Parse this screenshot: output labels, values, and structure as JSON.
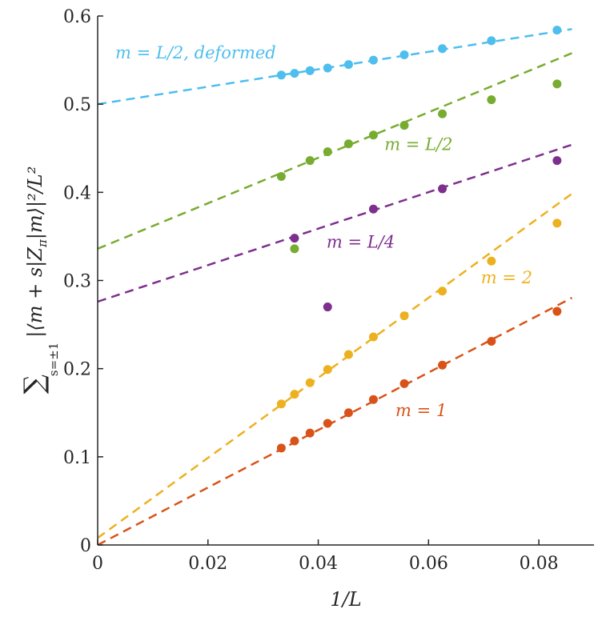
{
  "chart_data": {
    "type": "scatter",
    "xlabel": "1/L",
    "ylabel": "∑_{s=±1} |⟨m + s|Z_π|m⟩|² / L²",
    "ylabel_parts": {
      "sum": "∑",
      "subscript": "s=±1",
      "body": "|⟨m + s|Z",
      "pi": "π",
      "body2": "|m⟩|²/L²"
    },
    "xlim": [
      0,
      0.09
    ],
    "ylim": [
      0,
      0.6
    ],
    "xticks": [
      0,
      0.02,
      0.04,
      0.06,
      0.08
    ],
    "xtick_labels": [
      "0",
      "0.02",
      "0.04",
      "0.06",
      "0.08"
    ],
    "yticks": [
      0,
      0.1,
      0.2,
      0.3,
      0.4,
      0.5,
      0.6
    ],
    "ytick_labels": [
      "0",
      "0.1",
      "0.2",
      "0.3",
      "0.4",
      "0.5",
      "0.6"
    ],
    "grid": false,
    "series": [
      {
        "name": "m = L/2, deformed",
        "color": "#4DBEEE",
        "points": [
          [
            0.0333,
            0.533
          ],
          [
            0.0357,
            0.535
          ],
          [
            0.0385,
            0.538
          ],
          [
            0.0417,
            0.541
          ],
          [
            0.0455,
            0.545
          ],
          [
            0.05,
            0.55
          ],
          [
            0.0556,
            0.556
          ],
          [
            0.0625,
            0.563
          ],
          [
            0.0714,
            0.572
          ],
          [
            0.0833,
            0.584
          ]
        ],
        "fit": {
          "intercept": 0.5,
          "slope": 0.99
        }
      },
      {
        "name": "m = L/2",
        "color": "#77AC30",
        "points": [
          [
            0.0333,
            0.418
          ],
          [
            0.0357,
            0.336
          ],
          [
            0.0385,
            0.436
          ],
          [
            0.0417,
            0.446
          ],
          [
            0.0455,
            0.455
          ],
          [
            0.05,
            0.465
          ],
          [
            0.0556,
            0.476
          ],
          [
            0.0625,
            0.489
          ],
          [
            0.0714,
            0.505
          ],
          [
            0.0833,
            0.523
          ]
        ],
        "fit": {
          "intercept": 0.336,
          "slope": 2.58
        }
      },
      {
        "name": "m = L/4",
        "color": "#7E2F8E",
        "points": [
          [
            0.0357,
            0.348
          ],
          [
            0.0417,
            0.27
          ],
          [
            0.05,
            0.381
          ],
          [
            0.0625,
            0.404
          ],
          [
            0.0833,
            0.436
          ]
        ],
        "fit": {
          "intercept": 0.276,
          "slope": 2.07
        }
      },
      {
        "name": "m = 2",
        "color": "#EDB120",
        "points": [
          [
            0.0333,
            0.16
          ],
          [
            0.0357,
            0.171
          ],
          [
            0.0385,
            0.184
          ],
          [
            0.0417,
            0.199
          ],
          [
            0.0455,
            0.216
          ],
          [
            0.05,
            0.236
          ],
          [
            0.0556,
            0.26
          ],
          [
            0.0625,
            0.288
          ],
          [
            0.0714,
            0.322
          ],
          [
            0.0833,
            0.365
          ]
        ],
        "fit": {
          "intercept": 0.008,
          "slope": 4.54
        }
      },
      {
        "name": "m = 1",
        "color": "#D95319",
        "points": [
          [
            0.0333,
            0.11
          ],
          [
            0.0357,
            0.118
          ],
          [
            0.0385,
            0.127
          ],
          [
            0.0417,
            0.138
          ],
          [
            0.0455,
            0.15
          ],
          [
            0.05,
            0.165
          ],
          [
            0.0556,
            0.183
          ],
          [
            0.0625,
            0.204
          ],
          [
            0.0714,
            0.231
          ],
          [
            0.0833,
            0.265
          ]
        ],
        "fit": {
          "intercept": 0.0,
          "slope": 3.26
        }
      }
    ],
    "fit_x_range": [
      0,
      0.086
    ],
    "annotations": [
      {
        "text": "m = L/2, deformed",
        "series": 0,
        "x": 0.0032,
        "y": 0.552
      },
      {
        "text": "m = L/2",
        "series": 1,
        "x": 0.052,
        "y": 0.448
      },
      {
        "text": "m = L/4",
        "series": 2,
        "x": 0.0415,
        "y": 0.337
      },
      {
        "text": "m = 2",
        "series": 3,
        "x": 0.0695,
        "y": 0.297
      },
      {
        "text": "m = 1",
        "series": 4,
        "x": 0.054,
        "y": 0.146
      }
    ]
  }
}
